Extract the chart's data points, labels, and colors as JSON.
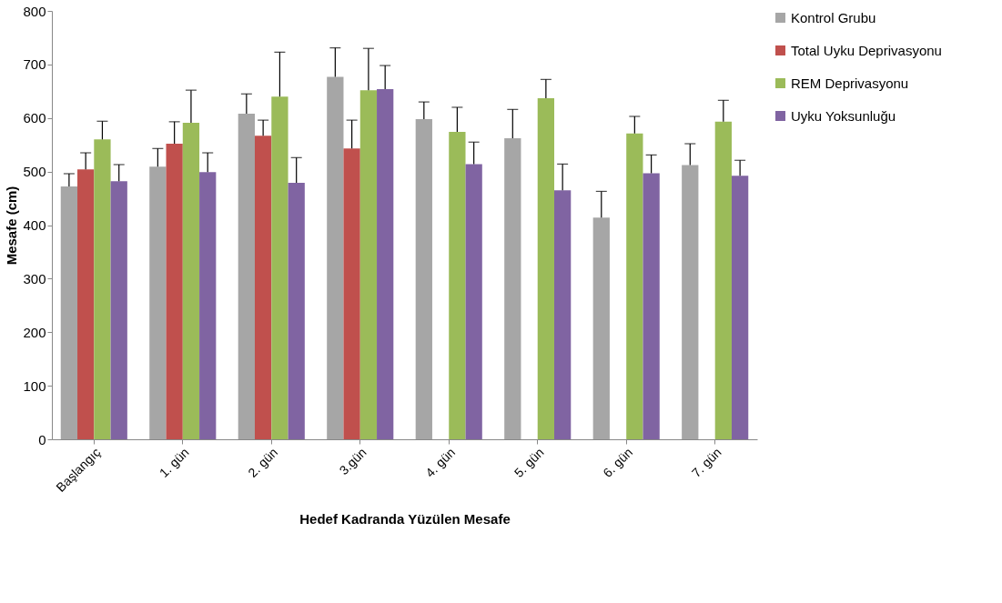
{
  "chart_data": {
    "type": "bar",
    "xlabel": "Hedef Kadranda  Yüzülen Mesafe",
    "ylabel": "Mesafe (cm)",
    "categories": [
      "Başlangıç",
      "1. gün",
      "2. gün",
      "3.gün",
      "4. gün",
      "5. gün",
      "6. gün",
      "7. gün"
    ],
    "series": [
      {
        "name": "Kontrol Grubu",
        "color": "#a6a6a6",
        "values": [
          472,
          509,
          608,
          677,
          598,
          562,
          414,
          512
        ],
        "errors": [
          [
            472,
            496
          ],
          [
            509,
            543
          ],
          [
            608,
            645
          ],
          [
            677,
            731
          ],
          [
            598,
            630
          ],
          [
            562,
            616
          ],
          [
            414,
            463
          ],
          [
            512,
            552
          ]
        ]
      },
      {
        "name": "Total Uyku Deprivasyonu",
        "color": "#c0504d",
        "values": [
          504,
          552,
          567,
          543,
          null,
          null,
          null,
          null
        ],
        "errors": [
          [
            504,
            535
          ],
          [
            552,
            593
          ],
          [
            567,
            596
          ],
          [
            543,
            596
          ],
          null,
          null,
          null,
          null
        ]
      },
      {
        "name": "REM Deprivasyonu",
        "color": "#9bbb59",
        "values": [
          560,
          591,
          640,
          652,
          574,
          637,
          571,
          593
        ],
        "errors": [
          [
            560,
            594
          ],
          [
            591,
            652
          ],
          [
            640,
            723
          ],
          [
            652,
            730
          ],
          [
            574,
            620
          ],
          [
            637,
            672
          ],
          [
            571,
            603
          ],
          [
            593,
            633
          ]
        ]
      },
      {
        "name": "Uyku Yoksunluğu",
        "color": "#8064a2",
        "values": [
          482,
          499,
          479,
          654,
          514,
          465,
          497,
          492
        ],
        "errors": [
          [
            482,
            513
          ],
          [
            499,
            535
          ],
          [
            479,
            526
          ],
          [
            654,
            698
          ],
          [
            514,
            555
          ],
          [
            465,
            514
          ],
          [
            497,
            531
          ],
          [
            492,
            521
          ]
        ]
      }
    ],
    "ylim": [
      0,
      800
    ],
    "yticks": [
      0,
      100,
      200,
      300,
      400,
      500,
      600,
      700,
      800
    ],
    "grid": false,
    "legend": "right"
  }
}
